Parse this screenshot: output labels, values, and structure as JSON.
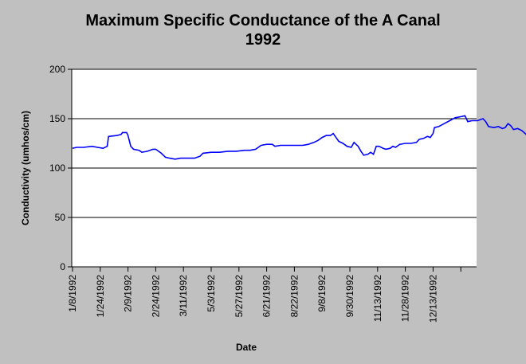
{
  "chart_data": {
    "type": "line",
    "title_line1": "Maximum Specific Conductance of the A Canal",
    "title_line2": "1992",
    "xlabel": "Date",
    "ylabel": "Conductivity (umhos/cm)",
    "ylim": [
      0,
      200
    ],
    "yticks": [
      0,
      50,
      100,
      150,
      200
    ],
    "grid": "horizontal",
    "line_color": "#0000ff",
    "plot_bg": "#ffffff",
    "x_tick_labels": [
      "1/8/1992",
      "1/24/1992",
      "2/9/1992",
      "2/24/1992",
      "3/11/1992",
      "5/3/1992",
      "5/27/1992",
      "6/21/1992",
      "8/22/1992",
      "9/8/1992",
      "9/30/1992",
      "11/13/1992",
      "11/28/1992",
      "12/13/1992"
    ],
    "series": [
      {
        "values": [
          [
            0.0,
            120
          ],
          [
            0.15,
            121
          ],
          [
            0.4,
            121
          ],
          [
            0.7,
            122
          ],
          [
            0.9,
            121
          ],
          [
            1.1,
            120
          ],
          [
            1.25,
            122
          ],
          [
            1.3,
            132
          ],
          [
            1.6,
            133
          ],
          [
            1.75,
            134
          ],
          [
            1.8,
            136
          ],
          [
            1.95,
            136
          ],
          [
            2.0,
            133
          ],
          [
            2.1,
            122
          ],
          [
            2.2,
            119
          ],
          [
            2.4,
            118
          ],
          [
            2.5,
            116
          ],
          [
            2.7,
            117
          ],
          [
            2.9,
            119
          ],
          [
            3.0,
            119
          ],
          [
            3.2,
            115
          ],
          [
            3.35,
            111
          ],
          [
            3.5,
            110
          ],
          [
            3.7,
            109
          ],
          [
            3.9,
            110
          ],
          [
            4.2,
            110
          ],
          [
            4.4,
            110
          ],
          [
            4.6,
            112
          ],
          [
            4.7,
            115
          ],
          [
            5.0,
            116
          ],
          [
            5.3,
            116
          ],
          [
            5.6,
            117
          ],
          [
            5.9,
            117
          ],
          [
            6.2,
            118
          ],
          [
            6.4,
            118
          ],
          [
            6.6,
            119
          ],
          [
            6.8,
            123
          ],
          [
            7.0,
            124
          ],
          [
            7.2,
            124
          ],
          [
            7.3,
            122
          ],
          [
            7.5,
            123
          ],
          [
            7.7,
            123
          ],
          [
            8.0,
            123
          ],
          [
            8.3,
            123
          ],
          [
            8.5,
            124
          ],
          [
            8.7,
            126
          ],
          [
            8.85,
            128
          ],
          [
            9.0,
            131
          ],
          [
            9.15,
            133
          ],
          [
            9.3,
            133
          ],
          [
            9.4,
            135
          ],
          [
            9.5,
            131
          ],
          [
            9.6,
            127
          ],
          [
            9.75,
            125
          ],
          [
            9.9,
            122
          ],
          [
            10.05,
            121
          ],
          [
            10.15,
            126
          ],
          [
            10.3,
            122
          ],
          [
            10.4,
            117
          ],
          [
            10.5,
            113
          ],
          [
            10.65,
            114
          ],
          [
            10.75,
            116
          ],
          [
            10.85,
            114
          ],
          [
            10.95,
            122
          ],
          [
            11.05,
            122
          ],
          [
            11.2,
            120
          ],
          [
            11.3,
            119
          ],
          [
            11.45,
            120
          ],
          [
            11.55,
            122
          ],
          [
            11.65,
            121
          ],
          [
            11.8,
            124
          ],
          [
            12.0,
            125
          ],
          [
            12.2,
            125
          ],
          [
            12.4,
            126
          ],
          [
            12.5,
            129
          ],
          [
            12.65,
            130
          ],
          [
            12.8,
            132
          ],
          [
            12.9,
            131
          ],
          [
            13.0,
            135
          ],
          [
            13.05,
            141
          ],
          [
            13.2,
            142
          ],
          [
            13.4,
            145
          ],
          [
            13.6,
            148
          ],
          [
            13.8,
            151
          ],
          [
            14.0,
            152
          ],
          [
            14.15,
            153
          ],
          [
            14.25,
            147
          ],
          [
            14.4,
            148
          ],
          [
            14.6,
            148
          ],
          [
            14.8,
            150
          ],
          [
            14.9,
            147
          ],
          [
            15.0,
            142
          ],
          [
            15.2,
            141
          ],
          [
            15.35,
            142
          ],
          [
            15.5,
            140
          ],
          [
            15.6,
            141
          ],
          [
            15.7,
            145
          ],
          [
            15.8,
            143
          ],
          [
            15.9,
            139
          ],
          [
            16.05,
            140
          ],
          [
            16.2,
            138
          ],
          [
            16.4,
            133
          ],
          [
            16.6,
            132
          ],
          [
            16.8,
            131
          ],
          [
            17.0,
            129
          ],
          [
            17.2,
            128
          ],
          [
            17.35,
            127
          ],
          [
            17.4,
            135
          ],
          [
            17.55,
            136
          ],
          [
            17.7,
            134
          ],
          [
            17.85,
            137
          ],
          [
            18.2,
            137
          ],
          [
            18.5,
            138
          ],
          [
            18.7,
            138
          ],
          [
            18.8,
            136
          ],
          [
            18.9,
            129
          ]
        ]
      }
    ]
  }
}
